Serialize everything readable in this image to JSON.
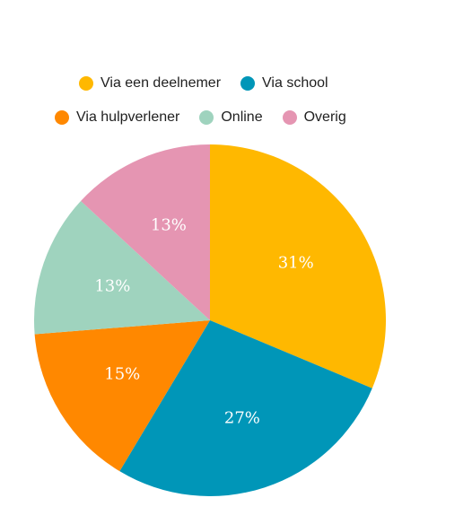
{
  "chart_data": {
    "type": "pie",
    "title": "",
    "slices": [
      {
        "name": "Via een deelnemer",
        "value": 31,
        "label": "31%",
        "color": "#FFB800"
      },
      {
        "name": "Via school",
        "value": 27,
        "label": "27%",
        "color": "#0096B8"
      },
      {
        "name": "Via hulpverlener",
        "value": 15,
        "label": "15%",
        "color": "#FF8800"
      },
      {
        "name": "Online",
        "value": 13,
        "label": "13%",
        "color": "#9FD3BE"
      },
      {
        "name": "Overig",
        "value": 13,
        "label": "13%",
        "color": "#E595B2"
      }
    ],
    "legend_placement": "top",
    "start": "12 o'clock",
    "direction": "clockwise"
  }
}
